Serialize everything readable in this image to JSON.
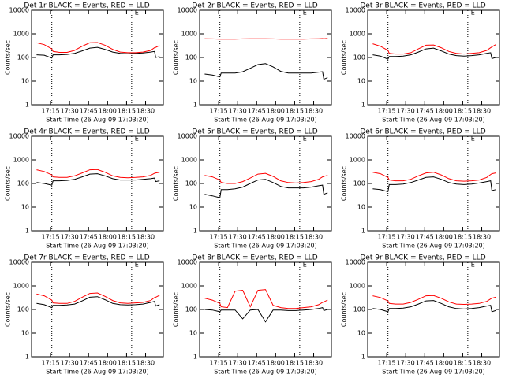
{
  "chart_data": [
    {
      "type": "line",
      "title": "Det 1r BLACK = Events, RED = LLD",
      "xlabel": "Start Time (26-Aug-09 17:03:20)",
      "ylabel": "Counts/sec",
      "log_y": true,
      "x": [
        1024,
        1030,
        1036,
        1037,
        1042,
        1048,
        1054,
        1060,
        1066,
        1072,
        1078,
        1084,
        1090,
        1096,
        1102,
        1108,
        1114,
        1117,
        1118,
        1121
      ],
      "series": [
        {
          "name": "Events",
          "color": "#000000",
          "values": [
            130,
            125,
            95,
            130,
            130,
            135,
            150,
            190,
            250,
            270,
            220,
            170,
            150,
            145,
            150,
            155,
            170,
            180,
            100,
            110
          ]
        },
        {
          "name": "LLD",
          "color": "#ff0000",
          "values": [
            420,
            350,
            230,
            180,
            165,
            165,
            200,
            300,
            420,
            430,
            330,
            220,
            170,
            160,
            160,
            170,
            200,
            260,
            270,
            320
          ]
        }
      ],
      "xlim": [
        1020,
        1124
      ],
      "ylim": [
        1,
        10000
      ],
      "yticks": [
        1,
        10,
        100,
        1000,
        10000
      ],
      "xticks": [
        {
          "value": 1035,
          "label": "17:15"
        },
        {
          "value": 1050,
          "label": "17:30"
        },
        {
          "value": 1065,
          "label": "17:45"
        },
        {
          "value": 1080,
          "label": "18:00"
        },
        {
          "value": 1095,
          "label": "18:15"
        },
        {
          "value": 1110,
          "label": "18:30"
        }
      ],
      "vlines": [
        1036,
        1099
      ],
      "annotation": {
        "text": "E",
        "x": 1103
      }
    },
    {
      "type": "line",
      "title": "Det 2r BLACK = Events, RED = LLD",
      "xlabel": "Start Time (26-Aug-09 17:03:20)",
      "ylabel": "Counts/sec",
      "log_y": true,
      "x": [
        1024,
        1030,
        1036,
        1037,
        1042,
        1048,
        1054,
        1060,
        1066,
        1072,
        1078,
        1084,
        1090,
        1096,
        1102,
        1108,
        1114,
        1117,
        1118,
        1121
      ],
      "series": [
        {
          "name": "Events",
          "color": "#000000",
          "values": [
            20,
            18,
            15,
            22,
            22,
            22,
            25,
            35,
            50,
            55,
            40,
            26,
            22,
            22,
            22,
            22,
            24,
            25,
            12,
            14
          ]
        },
        {
          "name": "LLD",
          "color": "#ff0000",
          "values": [
            620,
            610,
            600,
            600,
            600,
            600,
            610,
            620,
            620,
            620,
            610,
            600,
            600,
            600,
            600,
            610,
            620,
            630,
            620,
            640
          ]
        }
      ],
      "xlim": [
        1020,
        1124
      ],
      "ylim": [
        1,
        10000
      ],
      "yticks": [
        1,
        10,
        100,
        1000,
        10000
      ],
      "xticks": [
        {
          "value": 1035,
          "label": "17:15"
        },
        {
          "value": 1050,
          "label": "17:30"
        },
        {
          "value": 1065,
          "label": "17:45"
        },
        {
          "value": 1080,
          "label": "18:00"
        },
        {
          "value": 1095,
          "label": "18:15"
        },
        {
          "value": 1110,
          "label": "18:30"
        }
      ],
      "vlines": [
        1036,
        1099
      ],
      "annotation": {
        "text": "E",
        "x": 1103
      }
    },
    {
      "type": "line",
      "title": "Det 3r BLACK = Events, RED = LLD",
      "xlabel": "Start Time (26-Aug-09 17:03:20)",
      "ylabel": "Counts/sec",
      "log_y": true,
      "x": [
        1024,
        1030,
        1036,
        1037,
        1042,
        1048,
        1054,
        1060,
        1066,
        1072,
        1078,
        1084,
        1090,
        1096,
        1102,
        1108,
        1114,
        1117,
        1118,
        1121
      ],
      "series": [
        {
          "name": "Events",
          "color": "#000000",
          "values": [
            130,
            115,
            85,
            110,
            110,
            115,
            130,
            170,
            230,
            250,
            190,
            140,
            120,
            115,
            120,
            130,
            150,
            160,
            90,
            100
          ]
        },
        {
          "name": "LLD",
          "color": "#ff0000",
          "values": [
            380,
            300,
            200,
            150,
            140,
            140,
            160,
            230,
            330,
            340,
            260,
            180,
            150,
            140,
            150,
            160,
            200,
            260,
            280,
            350
          ]
        }
      ],
      "xlim": [
        1020,
        1124
      ],
      "ylim": [
        1,
        10000
      ],
      "yticks": [
        1,
        10,
        100,
        1000,
        10000
      ],
      "xticks": [
        {
          "value": 1035,
          "label": "17:15"
        },
        {
          "value": 1050,
          "label": "17:30"
        },
        {
          "value": 1065,
          "label": "17:45"
        },
        {
          "value": 1080,
          "label": "18:00"
        },
        {
          "value": 1095,
          "label": "18:15"
        },
        {
          "value": 1110,
          "label": "18:30"
        }
      ],
      "vlines": [
        1036,
        1099
      ],
      "annotation": {
        "text": "E",
        "x": 1103
      }
    },
    {
      "type": "line",
      "title": "Det 4r BLACK = Events, RED = LLD",
      "xlabel": "Start Time (26-Aug-09 17:03:20)",
      "ylabel": "Counts/sec",
      "log_y": true,
      "x": [
        1024,
        1030,
        1036,
        1037,
        1042,
        1048,
        1054,
        1060,
        1066,
        1072,
        1078,
        1084,
        1090,
        1096,
        1102,
        1108,
        1114,
        1117,
        1118,
        1121
      ],
      "series": [
        {
          "name": "Events",
          "color": "#000000",
          "values": [
            110,
            100,
            85,
            130,
            130,
            135,
            150,
            190,
            250,
            260,
            210,
            160,
            140,
            140,
            140,
            150,
            160,
            170,
            120,
            130
          ]
        },
        {
          "name": "LLD",
          "color": "#ff0000",
          "values": [
            380,
            320,
            230,
            190,
            180,
            180,
            210,
            280,
            380,
            390,
            300,
            210,
            180,
            175,
            180,
            190,
            220,
            270,
            280,
            300
          ]
        }
      ],
      "xlim": [
        1020,
        1124
      ],
      "ylim": [
        1,
        10000
      ],
      "yticks": [
        1,
        10,
        100,
        1000,
        10000
      ],
      "xticks": [
        {
          "value": 1035,
          "label": "17:15"
        },
        {
          "value": 1050,
          "label": "17:30"
        },
        {
          "value": 1065,
          "label": "17:45"
        },
        {
          "value": 1080,
          "label": "18:00"
        },
        {
          "value": 1095,
          "label": "18:15"
        },
        {
          "value": 1110,
          "label": "18:30"
        }
      ],
      "vlines": [
        1036,
        1099
      ],
      "annotation": {
        "text": "E",
        "x": 1103
      }
    },
    {
      "type": "line",
      "title": "Det 5r BLACK = Events, RED = LLD",
      "xlabel": "Start Time (26-Aug-09 17:03:20)",
      "ylabel": "Counts/sec",
      "log_y": true,
      "x": [
        1024,
        1030,
        1036,
        1037,
        1042,
        1048,
        1054,
        1060,
        1066,
        1072,
        1078,
        1084,
        1090,
        1096,
        1102,
        1108,
        1114,
        1117,
        1118,
        1121
      ],
      "series": [
        {
          "name": "Events",
          "color": "#000000",
          "values": [
            35,
            30,
            25,
            55,
            55,
            60,
            70,
            100,
            140,
            150,
            110,
            75,
            65,
            65,
            65,
            70,
            80,
            85,
            35,
            40
          ]
        },
        {
          "name": "LLD",
          "color": "#ff0000",
          "values": [
            220,
            190,
            140,
            110,
            100,
            100,
            120,
            170,
            250,
            270,
            200,
            130,
            110,
            105,
            110,
            120,
            150,
            190,
            200,
            220
          ]
        }
      ],
      "xlim": [
        1020,
        1124
      ],
      "ylim": [
        1,
        10000
      ],
      "yticks": [
        1,
        10,
        100,
        1000,
        10000
      ],
      "xticks": [
        {
          "value": 1035,
          "label": "17:15"
        },
        {
          "value": 1050,
          "label": "17:30"
        },
        {
          "value": 1065,
          "label": "17:45"
        },
        {
          "value": 1080,
          "label": "18:00"
        },
        {
          "value": 1095,
          "label": "18:15"
        },
        {
          "value": 1110,
          "label": "18:30"
        }
      ],
      "vlines": [
        1036,
        1099
      ],
      "annotation": {
        "text": "E",
        "x": 1103
      }
    },
    {
      "type": "line",
      "title": "Det 6r BLACK = Events, RED = LLD",
      "xlabel": "Start Time (26-Aug-09 17:03:20)",
      "ylabel": "Counts/sec",
      "log_y": true,
      "x": [
        1024,
        1030,
        1036,
        1037,
        1042,
        1048,
        1054,
        1060,
        1066,
        1072,
        1078,
        1084,
        1090,
        1096,
        1102,
        1108,
        1114,
        1117,
        1118,
        1121
      ],
      "series": [
        {
          "name": "Events",
          "color": "#000000",
          "values": [
            60,
            55,
            45,
            90,
            90,
            95,
            110,
            140,
            180,
            190,
            150,
            110,
            95,
            90,
            95,
            105,
            120,
            130,
            50,
            55
          ]
        },
        {
          "name": "LLD",
          "color": "#ff0000",
          "values": [
            300,
            260,
            180,
            140,
            130,
            130,
            150,
            210,
            280,
            300,
            230,
            160,
            130,
            125,
            130,
            140,
            180,
            240,
            260,
            280
          ]
        }
      ],
      "xlim": [
        1020,
        1124
      ],
      "ylim": [
        1,
        10000
      ],
      "yticks": [
        1,
        10,
        100,
        1000,
        10000
      ],
      "xticks": [
        {
          "value": 1035,
          "label": "17:15"
        },
        {
          "value": 1050,
          "label": "17:30"
        },
        {
          "value": 1065,
          "label": "17:45"
        },
        {
          "value": 1080,
          "label": "18:00"
        },
        {
          "value": 1095,
          "label": "18:15"
        },
        {
          "value": 1110,
          "label": "18:30"
        }
      ],
      "vlines": [
        1036,
        1099
      ],
      "annotation": {
        "text": "E",
        "x": 1103
      }
    },
    {
      "type": "line",
      "title": "Det 7r BLACK = Events, RED = LLD",
      "xlabel": "Start Time (26-Aug-09 17:03:20)",
      "ylabel": "Counts/sec",
      "log_y": true,
      "x": [
        1024,
        1030,
        1036,
        1037,
        1042,
        1048,
        1054,
        1060,
        1066,
        1072,
        1078,
        1084,
        1090,
        1096,
        1102,
        1108,
        1114,
        1117,
        1118,
        1121
      ],
      "series": [
        {
          "name": "Events",
          "color": "#000000",
          "values": [
            180,
            160,
            120,
            150,
            150,
            155,
            170,
            230,
            330,
            350,
            260,
            180,
            160,
            155,
            160,
            170,
            200,
            220,
            140,
            160
          ]
        },
        {
          "name": "LLD",
          "color": "#ff0000",
          "values": [
            450,
            380,
            250,
            190,
            180,
            180,
            220,
            330,
            480,
            500,
            360,
            240,
            190,
            180,
            190,
            200,
            240,
            320,
            330,
            400
          ]
        }
      ],
      "xlim": [
        1020,
        1124
      ],
      "ylim": [
        1,
        10000
      ],
      "yticks": [
        1,
        10,
        100,
        1000,
        10000
      ],
      "xticks": [
        {
          "value": 1035,
          "label": "17:15"
        },
        {
          "value": 1050,
          "label": "17:30"
        },
        {
          "value": 1065,
          "label": "17:45"
        },
        {
          "value": 1080,
          "label": "18:00"
        },
        {
          "value": 1095,
          "label": "18:15"
        },
        {
          "value": 1110,
          "label": "18:30"
        }
      ],
      "vlines": [
        1036,
        1099
      ],
      "annotation": {
        "text": "E",
        "x": 1103
      }
    },
    {
      "type": "line",
      "title": "Det 8r BLACK = Events, RED = LLD",
      "xlabel": "Start Time (26-Aug-09 17:03:20)",
      "ylabel": "Counts/sec",
      "log_y": true,
      "x": [
        1024,
        1030,
        1036,
        1037,
        1042,
        1048,
        1054,
        1060,
        1066,
        1072,
        1078,
        1084,
        1090,
        1096,
        1102,
        1108,
        1114,
        1117,
        1118,
        1121
      ],
      "series": [
        {
          "name": "Events",
          "color": "#000000",
          "values": [
            100,
            95,
            80,
            95,
            95,
            95,
            40,
            95,
            100,
            30,
            95,
            95,
            90,
            90,
            95,
            100,
            110,
            120,
            90,
            100
          ]
        },
        {
          "name": "LLD",
          "color": "#ff0000",
          "values": [
            300,
            250,
            180,
            130,
            120,
            600,
            650,
            130,
            650,
            700,
            150,
            120,
            110,
            110,
            120,
            130,
            160,
            200,
            210,
            250
          ]
        }
      ],
      "xlim": [
        1020,
        1124
      ],
      "ylim": [
        1,
        10000
      ],
      "yticks": [
        1,
        10,
        100,
        1000,
        10000
      ],
      "xticks": [
        {
          "value": 1035,
          "label": "17:15"
        },
        {
          "value": 1050,
          "label": "17:30"
        },
        {
          "value": 1065,
          "label": "17:45"
        },
        {
          "value": 1080,
          "label": "18:00"
        },
        {
          "value": 1095,
          "label": "18:15"
        },
        {
          "value": 1110,
          "label": "18:30"
        }
      ],
      "vlines": [
        1036,
        1099
      ],
      "annotation": {
        "text": "E",
        "x": 1103
      }
    },
    {
      "type": "line",
      "title": "Det 9r BLACK = Events, RED = LLD",
      "xlabel": "Start Time (26-Aug-09 17:03:20)",
      "ylabel": "Counts/sec",
      "log_y": true,
      "x": [
        1024,
        1030,
        1036,
        1037,
        1042,
        1048,
        1054,
        1060,
        1066,
        1072,
        1078,
        1084,
        1090,
        1096,
        1102,
        1108,
        1114,
        1117,
        1118,
        1121
      ],
      "series": [
        {
          "name": "Events",
          "color": "#000000",
          "values": [
            110,
            100,
            80,
            110,
            110,
            115,
            130,
            170,
            230,
            240,
            180,
            130,
            110,
            105,
            110,
            120,
            140,
            150,
            80,
            90
          ]
        },
        {
          "name": "LLD",
          "color": "#ff0000",
          "values": [
            380,
            320,
            230,
            180,
            170,
            170,
            200,
            270,
            380,
            390,
            300,
            210,
            170,
            165,
            170,
            180,
            220,
            280,
            300,
            330
          ]
        }
      ],
      "xlim": [
        1020,
        1124
      ],
      "ylim": [
        1,
        10000
      ],
      "yticks": [
        1,
        10,
        100,
        1000,
        10000
      ],
      "xticks": [
        {
          "value": 1035,
          "label": "17:15"
        },
        {
          "value": 1050,
          "label": "17:30"
        },
        {
          "value": 1065,
          "label": "17:45"
        },
        {
          "value": 1080,
          "label": "18:00"
        },
        {
          "value": 1095,
          "label": "18:15"
        },
        {
          "value": 1110,
          "label": "18:30"
        }
      ],
      "vlines": [
        1036,
        1099
      ],
      "annotation": {
        "text": "E",
        "x": 1103
      }
    }
  ]
}
